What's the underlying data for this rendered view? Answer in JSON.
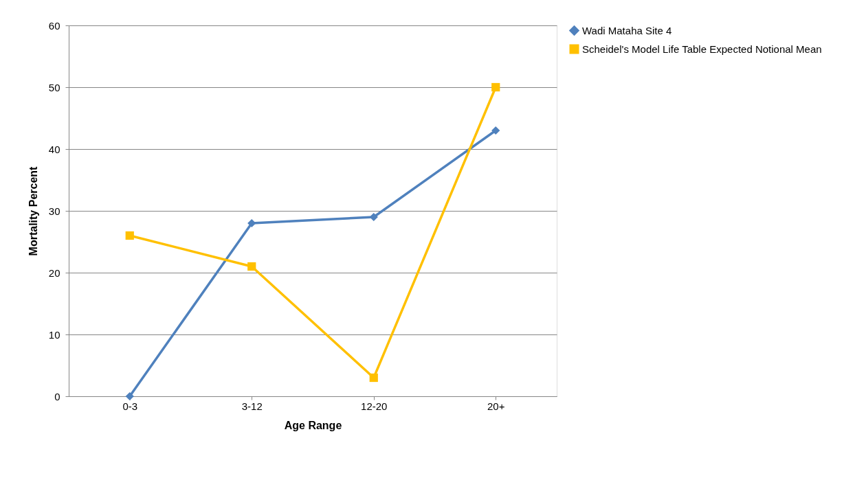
{
  "chart_data": {
    "type": "line",
    "xlabel": "Age Range",
    "ylabel": "Mortality Percent",
    "categories": [
      "0-3",
      "3-12",
      "12-20",
      "20+"
    ],
    "series": [
      {
        "name": "Wadi Mataha Site 4",
        "color": "#4f81bd",
        "marker": "diamond",
        "values": [
          0,
          28,
          29,
          43
        ]
      },
      {
        "name": "Scheidel's Model Life Table Expected Notional Mean",
        "color": "#ffc000",
        "marker": "square",
        "values": [
          26,
          21,
          3,
          50
        ]
      }
    ],
    "ylim": [
      0,
      60
    ],
    "yticks": [
      0,
      10,
      20,
      30,
      40,
      50,
      60
    ],
    "grid": "y",
    "legend": "right",
    "line_style": "solid"
  }
}
